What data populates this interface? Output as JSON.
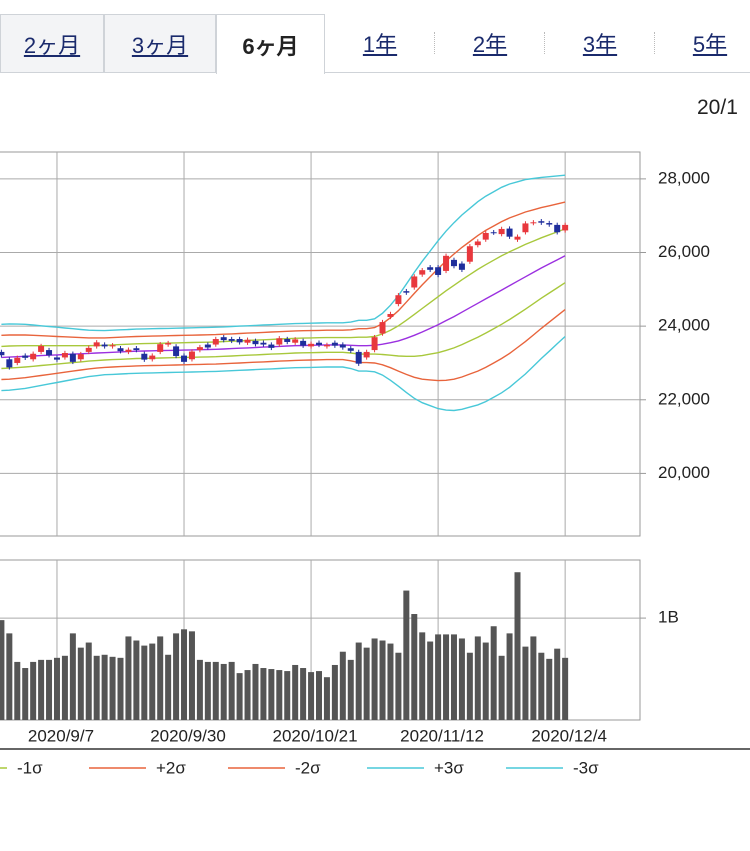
{
  "tabs": {
    "items": [
      "2ヶ月",
      "3ヶ月",
      "6ヶ月",
      "1年",
      "2年",
      "3年",
      "5年"
    ],
    "active": 2
  },
  "date_label": "20/1",
  "chart_data": {
    "type": "candlestick",
    "grid": true,
    "legend": "bottom",
    "up_color": "#e8383d",
    "down_color": "#1f2e9c",
    "categories": [
      null,
      null,
      null,
      null,
      null,
      null,
      null,
      "2020/9/7",
      null,
      null,
      null,
      null,
      null,
      null,
      null,
      null,
      null,
      null,
      null,
      null,
      null,
      null,
      null,
      "2020/9/30",
      null,
      null,
      null,
      null,
      null,
      null,
      null,
      null,
      null,
      null,
      null,
      null,
      null,
      null,
      null,
      "2020/10/21",
      null,
      null,
      null,
      null,
      null,
      null,
      null,
      null,
      null,
      null,
      null,
      null,
      null,
      null,
      null,
      "2020/11/12",
      null,
      null,
      null,
      null,
      null,
      null,
      null,
      null,
      null,
      null,
      null,
      null,
      null,
      null,
      null,
      "2020/12/4"
    ],
    "open": [
      23300,
      23100,
      23000,
      23200,
      23100,
      23300,
      23350,
      23150,
      23150,
      23250,
      23100,
      23300,
      23450,
      23500,
      23450,
      23400,
      23300,
      23400,
      23250,
      23100,
      23300,
      23500,
      23450,
      23200,
      23100,
      23350,
      23500,
      23500,
      23700,
      23650,
      23650,
      23550,
      23600,
      23550,
      23500,
      23500,
      23650,
      23550,
      23600,
      23450,
      23550,
      23450,
      23550,
      23500,
      23400,
      23300,
      23150,
      23350,
      23800,
      24250,
      24600,
      24950,
      25050,
      25400,
      25600,
      25600,
      25500,
      25800,
      25700,
      25750,
      26200,
      26350,
      26550,
      26500,
      26650,
      26350,
      26550,
      26800,
      26850,
      26800,
      26750,
      26600
    ],
    "high": [
      23360,
      23160,
      23200,
      23260,
      23310,
      23520,
      23410,
      23210,
      23330,
      23310,
      23300,
      23470,
      23620,
      23560,
      23540,
      23460,
      23420,
      23460,
      23310,
      23260,
      23570,
      23600,
      23510,
      23260,
      23370,
      23490,
      23560,
      23710,
      23760,
      23710,
      23710,
      23690,
      23660,
      23610,
      23560,
      23730,
      23710,
      23700,
      23660,
      23580,
      23610,
      23550,
      23610,
      23560,
      23460,
      23360,
      23360,
      23760,
      24170,
      24390,
      24900,
      25010,
      25410,
      25580,
      25660,
      25660,
      25970,
      25860,
      25760,
      26230,
      26360,
      26590,
      26610,
      26700,
      26710,
      26490,
      26850,
      26880,
      26910,
      26860,
      26810,
      26810
    ],
    "low": [
      23150,
      22820,
      22940,
      23080,
      23040,
      23240,
      23150,
      23030,
      23090,
      22970,
      23040,
      23240,
      23390,
      23390,
      23390,
      23260,
      23240,
      23290,
      23030,
      23040,
      23240,
      23440,
      23130,
      22970,
      23040,
      23290,
      23360,
      23440,
      23560,
      23540,
      23500,
      23490,
      23450,
      23440,
      23350,
      23440,
      23510,
      23490,
      23410,
      23390,
      23430,
      23390,
      23410,
      23360,
      23270,
      22920,
      23090,
      23290,
      23740,
      24190,
      24540,
      24850,
      24990,
      25340,
      25470,
      25330,
      25440,
      25570,
      25470,
      25690,
      26140,
      26290,
      26480,
      26440,
      26370,
      26290,
      26490,
      26740,
      26750,
      26700,
      26490,
      26540
    ],
    "close": [
      23210,
      22880,
      23140,
      23140,
      23250,
      23460,
      23210,
      23090,
      23270,
      23030,
      23240,
      23410,
      23560,
      23450,
      23480,
      23320,
      23360,
      23350,
      23090,
      23200,
      23510,
      23540,
      23190,
      23030,
      23310,
      23430,
      23420,
      23650,
      23620,
      23600,
      23560,
      23630,
      23510,
      23500,
      23410,
      23670,
      23570,
      23640,
      23470,
      23520,
      23490,
      23490,
      23470,
      23420,
      23330,
      22980,
      23300,
      23700,
      24110,
      24330,
      24840,
      24910,
      25350,
      25520,
      25530,
      25390,
      25910,
      25630,
      25530,
      26170,
      26300,
      26530,
      26540,
      26640,
      26430,
      26430,
      26790,
      26820,
      26810,
      26760,
      26550,
      26750
    ],
    "series": [
      {
        "color": "#9b30e0",
        "values": [
          23150,
          23160,
          23170,
          23180,
          23190,
          23200,
          23210,
          23220,
          23230,
          23240,
          23250,
          23260,
          23270,
          23280,
          23290,
          23300,
          23310,
          23320,
          23325,
          23330,
          23335,
          23340,
          23345,
          23350,
          23355,
          23360,
          23365,
          23370,
          23380,
          23390,
          23400,
          23410,
          23420,
          23430,
          23440,
          23450,
          23460,
          23470,
          23475,
          23480,
          23485,
          23490,
          23490,
          23490,
          23480,
          23470,
          23470,
          23480,
          23510,
          23550,
          23600,
          23670,
          23750,
          23840,
          23940,
          24040,
          24150,
          24260,
          24380,
          24500,
          24620,
          24740,
          24860,
          24980,
          25100,
          25220,
          25340,
          25460,
          25580,
          25690,
          25800,
          25910
        ]
      },
      {
        "color": "#a8c83c",
        "values": [
          23450,
          23460,
          23465,
          23470,
          23470,
          23470,
          23470,
          23470,
          23470,
          23470,
          23470,
          23470,
          23475,
          23480,
          23490,
          23500,
          23510,
          23520,
          23525,
          23530,
          23535,
          23540,
          23545,
          23550,
          23555,
          23560,
          23565,
          23570,
          23580,
          23590,
          23600,
          23610,
          23620,
          23630,
          23640,
          23650,
          23660,
          23670,
          23675,
          23680,
          23685,
          23690,
          23690,
          23690,
          23690,
          23700,
          23700,
          23720,
          23790,
          23890,
          24010,
          24160,
          24320,
          24480,
          24640,
          24800,
          24960,
          25110,
          25260,
          25400,
          25540,
          25670,
          25790,
          25910,
          26020,
          26120,
          26220,
          26310,
          26400,
          26480,
          26560,
          26640
        ]
      },
      {
        "name": "-1σ",
        "color": "#a8c83c",
        "values": [
          22850,
          22860,
          22875,
          22890,
          22910,
          22930,
          22950,
          22970,
          22990,
          23010,
          23030,
          23050,
          23065,
          23080,
          23090,
          23100,
          23110,
          23120,
          23125,
          23130,
          23135,
          23140,
          23145,
          23150,
          23155,
          23160,
          23165,
          23170,
          23180,
          23190,
          23200,
          23210,
          23220,
          23230,
          23240,
          23250,
          23260,
          23270,
          23275,
          23280,
          23285,
          23290,
          23290,
          23290,
          23270,
          23240,
          23240,
          23240,
          23230,
          23210,
          23190,
          23180,
          23180,
          23200,
          23240,
          23280,
          23340,
          23410,
          23500,
          23600,
          23700,
          23810,
          23930,
          24050,
          24180,
          24320,
          24460,
          24610,
          24760,
          24900,
          25040,
          25180
        ]
      },
      {
        "name": "+2σ",
        "color": "#e8643c",
        "values": [
          23750,
          23760,
          23760,
          23760,
          23750,
          23740,
          23730,
          23720,
          23710,
          23700,
          23690,
          23680,
          23680,
          23680,
          23690,
          23700,
          23710,
          23720,
          23725,
          23730,
          23735,
          23740,
          23745,
          23750,
          23755,
          23760,
          23765,
          23770,
          23780,
          23790,
          23800,
          23810,
          23820,
          23830,
          23840,
          23850,
          23860,
          23870,
          23875,
          23880,
          23885,
          23890,
          23890,
          23890,
          23900,
          23930,
          23930,
          23960,
          24070,
          24230,
          24420,
          24650,
          24890,
          25120,
          25340,
          25560,
          25770,
          25960,
          26140,
          26300,
          26460,
          26600,
          26720,
          26840,
          26940,
          27020,
          27100,
          27160,
          27220,
          27270,
          27320,
          27370
        ]
      },
      {
        "name": "-2σ",
        "color": "#e8643c",
        "values": [
          22550,
          22560,
          22580,
          22600,
          22630,
          22660,
          22690,
          22720,
          22750,
          22780,
          22810,
          22840,
          22860,
          22880,
          22890,
          22900,
          22910,
          22920,
          22925,
          22930,
          22935,
          22940,
          22945,
          22950,
          22955,
          22960,
          22965,
          22970,
          22980,
          22990,
          23000,
          23010,
          23020,
          23030,
          23040,
          23050,
          23060,
          23070,
          23075,
          23080,
          23085,
          23090,
          23090,
          23090,
          23060,
          23010,
          23010,
          23000,
          22950,
          22870,
          22780,
          22690,
          22610,
          22560,
          22540,
          22520,
          22530,
          22560,
          22620,
          22700,
          22780,
          22880,
          23000,
          23120,
          23260,
          23420,
          23580,
          23760,
          23940,
          24110,
          24280,
          24450
        ]
      },
      {
        "name": "+3σ",
        "color": "#48c8d8",
        "values": [
          24050,
          24060,
          24055,
          24050,
          24030,
          24010,
          23990,
          23970,
          23950,
          23930,
          23910,
          23890,
          23885,
          23880,
          23890,
          23900,
          23910,
          23920,
          23925,
          23930,
          23935,
          23940,
          23945,
          23950,
          23955,
          23960,
          23965,
          23970,
          23980,
          23990,
          24000,
          24010,
          24020,
          24030,
          24040,
          24050,
          24060,
          24070,
          24075,
          24080,
          24085,
          24090,
          24090,
          24090,
          24110,
          24160,
          24160,
          24200,
          24350,
          24570,
          24830,
          25140,
          25460,
          25760,
          26040,
          26320,
          26580,
          26810,
          27020,
          27200,
          27380,
          27530,
          27650,
          27770,
          27860,
          27920,
          27980,
          28010,
          28040,
          28060,
          28080,
          28100
        ]
      },
      {
        "name": "-3σ",
        "color": "#48c8d8",
        "values": [
          22250,
          22260,
          22285,
          22310,
          22350,
          22390,
          22430,
          22470,
          22510,
          22550,
          22590,
          22630,
          22655,
          22680,
          22690,
          22700,
          22710,
          22720,
          22725,
          22730,
          22735,
          22740,
          22745,
          22750,
          22755,
          22760,
          22765,
          22770,
          22780,
          22790,
          22800,
          22810,
          22820,
          22830,
          22840,
          22850,
          22860,
          22870,
          22875,
          22880,
          22885,
          22890,
          22890,
          22890,
          22850,
          22780,
          22780,
          22760,
          22670,
          22530,
          22370,
          22200,
          22040,
          21920,
          21840,
          21760,
          21720,
          21710,
          21740,
          21800,
          21860,
          21950,
          22070,
          22190,
          22340,
          22520,
          22700,
          22910,
          23120,
          23320,
          23520,
          23720
        ]
      }
    ],
    "ylim": [
      18300,
      28730
    ],
    "yticks": [
      {
        "value": 20000,
        "label": "20,000"
      },
      {
        "value": 22000,
        "label": "22,000"
      },
      {
        "value": 24000,
        "label": "24,000"
      },
      {
        "value": 26000,
        "label": "26,000"
      },
      {
        "value": 28000,
        "label": "28,000"
      }
    ],
    "volume": {
      "type": "bar",
      "color": "#555555",
      "values": [
        980000000,
        850000000,
        570000000,
        510000000,
        570000000,
        590000000,
        590000000,
        610000000,
        630000000,
        850000000,
        710000000,
        760000000,
        630000000,
        640000000,
        620000000,
        610000000,
        820000000,
        780000000,
        730000000,
        750000000,
        820000000,
        640000000,
        850000000,
        890000000,
        870000000,
        590000000,
        570000000,
        570000000,
        550000000,
        570000000,
        460000000,
        490000000,
        550000000,
        510000000,
        500000000,
        490000000,
        480000000,
        540000000,
        510000000,
        470000000,
        480000000,
        420000000,
        540000000,
        670000000,
        590000000,
        760000000,
        710000000,
        800000000,
        780000000,
        750000000,
        660000000,
        1270000000,
        1040000000,
        860000000,
        770000000,
        840000000,
        840000000,
        840000000,
        800000000,
        660000000,
        820000000,
        760000000,
        920000000,
        630000000,
        850000000,
        1450000000,
        720000000,
        820000000,
        660000000,
        600000000,
        700000000,
        610000000
      ],
      "ylim": [
        0,
        1570000000
      ],
      "yticks": [
        {
          "value": 1000000000,
          "label": "1B"
        }
      ]
    }
  }
}
